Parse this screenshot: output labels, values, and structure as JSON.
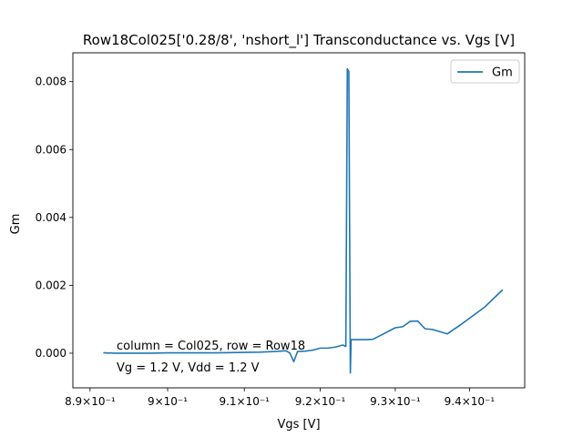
{
  "chart_data": {
    "type": "line",
    "title": "Row18Col025['0.28/8', 'nshort_l'] Transconductance vs. Vgs [V]",
    "xlabel": "Vgs [V]",
    "ylabel": "Gm",
    "xlim": [
      0.8878,
      0.9475
    ],
    "ylim": [
      -0.00102,
      0.00885
    ],
    "x_scale": "log",
    "x_ticks": [
      {
        "value": 0.89,
        "label": "8.9×10⁻¹"
      },
      {
        "value": 0.9,
        "label": "9×10⁻¹"
      },
      {
        "value": 0.91,
        "label": "9.1×10⁻¹"
      },
      {
        "value": 0.92,
        "label": "9.2×10⁻¹"
      },
      {
        "value": 0.93,
        "label": "9.3×10⁻¹"
      },
      {
        "value": 0.94,
        "label": "9.4×10⁻¹"
      }
    ],
    "y_ticks": [
      {
        "value": 0.0,
        "label": "0.000"
      },
      {
        "value": 0.002,
        "label": "0.002"
      },
      {
        "value": 0.004,
        "label": "0.004"
      },
      {
        "value": 0.006,
        "label": "0.006"
      },
      {
        "value": 0.008,
        "label": "0.008"
      }
    ],
    "grid": false,
    "legend": {
      "placement": "top-right"
    },
    "series": [
      {
        "name": "Gm",
        "color": "#1f77b4",
        "x": [
          0.8917,
          0.892,
          0.8923,
          0.8925,
          0.893,
          0.895,
          0.898,
          0.9,
          0.903,
          0.906,
          0.909,
          0.912,
          0.914,
          0.9155,
          0.916,
          0.9165,
          0.917,
          0.918,
          0.919,
          0.92,
          0.921,
          0.922,
          0.923,
          0.9234,
          0.9236,
          0.9238,
          0.924,
          0.9241,
          0.9245,
          0.925,
          0.926,
          0.927,
          0.928,
          0.93,
          0.931,
          0.932,
          0.933,
          0.934,
          0.935,
          0.937,
          0.939,
          0.942,
          0.9445
        ],
        "y": [
          1e-05,
          1e-05,
          0.0,
          1e-05,
          0.0,
          0.0,
          0.0,
          1e-05,
          1e-05,
          1e-05,
          2e-05,
          3e-05,
          5e-05,
          7e-05,
          0.0,
          -0.00025,
          5e-05,
          6e-05,
          9e-05,
          0.00015,
          0.00015,
          0.00018,
          0.00024,
          0.0002,
          0.00838,
          0.0083,
          -0.00058,
          0.0004,
          0.0004,
          0.0004,
          0.0004,
          0.00041,
          0.00052,
          0.00075,
          0.00078,
          0.00094,
          0.00095,
          0.00072,
          0.0007,
          0.00057,
          0.00087,
          0.00135,
          0.00187
        ]
      }
    ],
    "annotations": [
      "column = Col025, row = Row18",
      "Vg = 1.2 V, Vdd = 1.2 V"
    ]
  }
}
